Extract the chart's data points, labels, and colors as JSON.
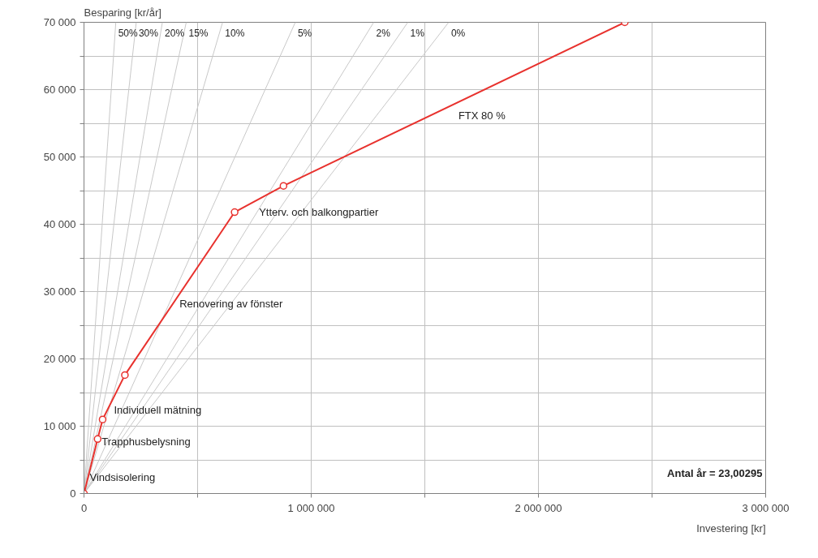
{
  "chart_data": {
    "type": "line",
    "xlabel": "Investering [kr]",
    "ylabel": "Besparing [kr/år]",
    "xlim": [
      0,
      3000000
    ],
    "ylim": [
      0,
      70000
    ],
    "xticks": [
      0,
      {
        "value": 500000,
        "label": null
      },
      {
        "value": 1000000,
        "label": "1 000 000"
      },
      {
        "value": 1500000,
        "label": null
      },
      {
        "value": 2000000,
        "label": "2 000 000"
      },
      {
        "value": 2500000,
        "label": null
      },
      {
        "value": 3000000,
        "label": "3 000 000"
      }
    ],
    "yticks": [
      0,
      {
        "value": 5000,
        "label": null
      },
      {
        "value": 10000,
        "label": "10 000"
      },
      {
        "value": 15000,
        "label": null
      },
      {
        "value": 20000,
        "label": "20 000"
      },
      {
        "value": 25000,
        "label": null
      },
      {
        "value": 30000,
        "label": "30 000"
      },
      {
        "value": 35000,
        "label": null
      },
      {
        "value": 40000,
        "label": "40 000"
      },
      {
        "value": 45000,
        "label": null
      },
      {
        "value": 50000,
        "label": "50 000"
      },
      {
        "value": 55000,
        "label": null
      },
      {
        "value": 60000,
        "label": "60 000"
      },
      {
        "value": 65000,
        "label": null
      },
      {
        "value": 70000,
        "label": "70 000"
      }
    ],
    "grid": true,
    "series": [
      {
        "name": "50%",
        "color": "#c8c8c8",
        "marker": "none",
        "x": [
          0,
          140000
        ],
        "values": [
          0,
          70000
        ]
      },
      {
        "name": "30%",
        "color": "#c8c8c8",
        "marker": "none",
        "x": [
          0,
          230000
        ],
        "values": [
          0,
          70000
        ]
      },
      {
        "name": "20%",
        "color": "#c8c8c8",
        "marker": "none",
        "x": [
          0,
          345000
        ],
        "values": [
          0,
          70000
        ]
      },
      {
        "name": "15%",
        "color": "#c8c8c8",
        "marker": "none",
        "x": [
          0,
          450000
        ],
        "values": [
          0,
          70000
        ]
      },
      {
        "name": "10%",
        "color": "#c8c8c8",
        "marker": "none",
        "x": [
          0,
          610000
        ],
        "values": [
          0,
          70000
        ]
      },
      {
        "name": "5%",
        "color": "#c8c8c8",
        "marker": "none",
        "x": [
          0,
          930000
        ],
        "values": [
          0,
          70000
        ]
      },
      {
        "name": "2%",
        "color": "#c8c8c8",
        "marker": "none",
        "x": [
          0,
          1275000
        ],
        "values": [
          0,
          70000
        ]
      },
      {
        "name": "1%",
        "color": "#c8c8c8",
        "marker": "none",
        "x": [
          0,
          1425000
        ],
        "values": [
          0,
          70000
        ]
      },
      {
        "name": "0%",
        "color": "#c8c8c8",
        "marker": "none",
        "x": [
          0,
          1605000
        ],
        "values": [
          0,
          70000
        ]
      },
      {
        "color": "#e8322e",
        "marker": "circle",
        "x": [
          0,
          60000,
          82000,
          180000,
          663000,
          878000,
          2380000
        ],
        "values": [
          0,
          8100,
          11000,
          17600,
          41800,
          45700,
          70000
        ]
      }
    ],
    "annotations": [
      {
        "text": "Vindsisolering",
        "x": 0,
        "y": 0
      },
      {
        "text": "Trapphusbelysning",
        "x": 60000,
        "y": 8100
      },
      {
        "text": "Individuell mätning",
        "x": 82000,
        "y": 11000
      },
      {
        "text": "Renovering av fönster",
        "x": 391600,
        "y": 28200
      },
      {
        "text": "Ytterv. och balkongpartier",
        "x": 663000,
        "y": 41800
      },
      {
        "text": "FTX 80 %",
        "x": 1630000,
        "y": 57900
      },
      "Antal år = 23,00295"
    ]
  }
}
